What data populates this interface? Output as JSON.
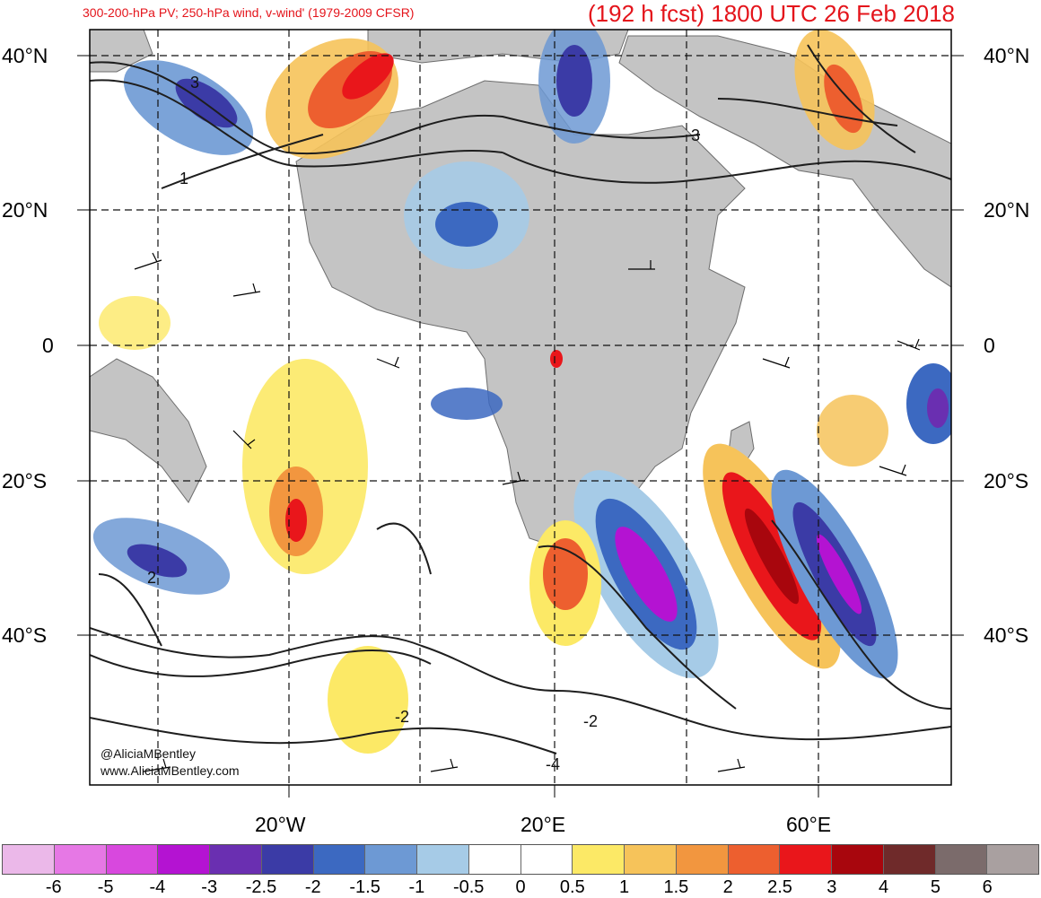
{
  "title": {
    "left": "300-200-hPa PV; 250-hPa wind, v-wind' (1979-2009 CFSR)",
    "right": "(192 h fcst) 1800 UTC 26 Feb 2018"
  },
  "lat_labels": [
    "40°N",
    "20°N",
    "0",
    "20°S",
    "40°S"
  ],
  "lon_labels": [
    "20°W",
    "20°E",
    "60°E"
  ],
  "credit": [
    "@AliciaMBentley",
    "www.AliciaMBentley.com"
  ],
  "contour_labels": [
    "3",
    "1",
    "3",
    "2",
    "-2",
    "-2",
    "-4"
  ],
  "colorbar": {
    "colors": [
      "#ebb8e9",
      "#e678e5",
      "#d848de",
      "#b413d2",
      "#6a2fb1",
      "#3b3ba6",
      "#3c69c1",
      "#6d99d4",
      "#a6cbe7",
      "#ffffff",
      "#ffffff",
      "#fce966",
      "#f6c35a",
      "#f2963f",
      "#ed5f2f",
      "#e9161b",
      "#a8060d",
      "#6f2a2a",
      "#7b6b6b",
      "#a9a0a0"
    ],
    "labels": [
      "-6",
      "-5",
      "-4",
      "-3",
      "-2.5",
      "-2",
      "-1.5",
      "-1",
      "-0.5",
      "0",
      "0.5",
      "1",
      "1.5",
      "2",
      "2.5",
      "3",
      "4",
      "5",
      "6"
    ]
  },
  "colors": {
    "land": "#c4c4c4",
    "title": "#e4141b"
  }
}
